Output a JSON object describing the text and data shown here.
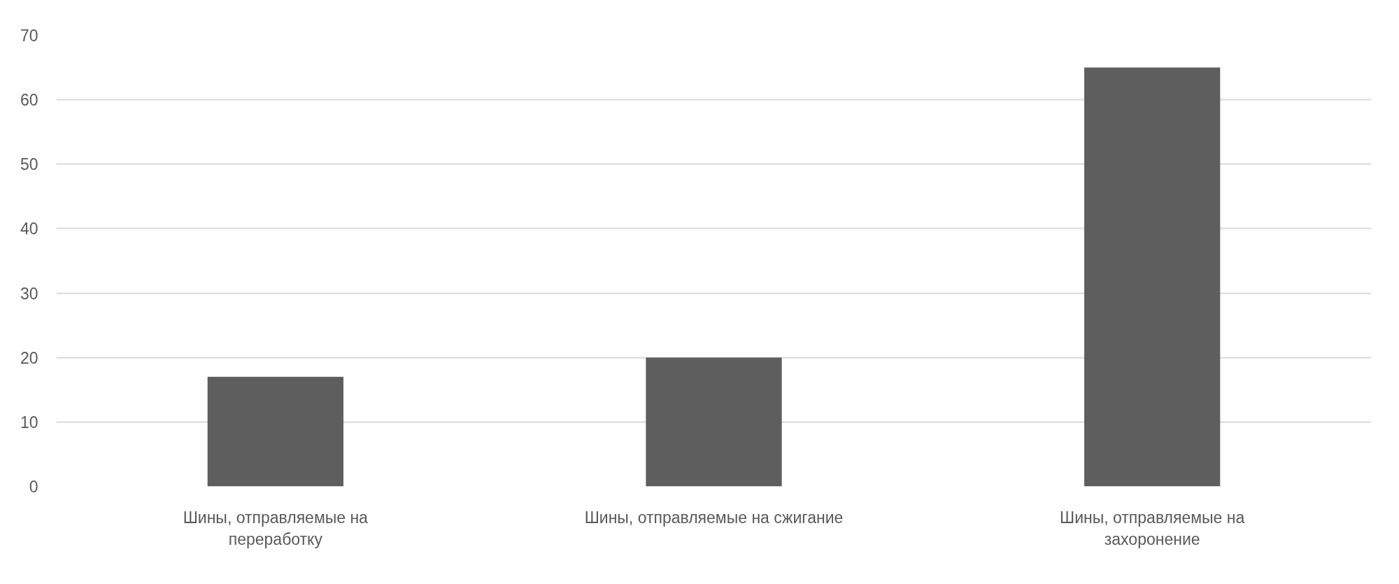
{
  "chart_data": {
    "type": "bar",
    "categories": [
      "Шины, отправляемые на переработку",
      "Шины, отправляемые на сжигание",
      "Шины, отправляемые на захоронение"
    ],
    "values": [
      17,
      20,
      65
    ],
    "color": "#5e5e5e",
    "ylim": [
      0,
      70
    ],
    "yticks": [
      0,
      10,
      20,
      30,
      40,
      50,
      60,
      70
    ],
    "grid": "y"
  }
}
